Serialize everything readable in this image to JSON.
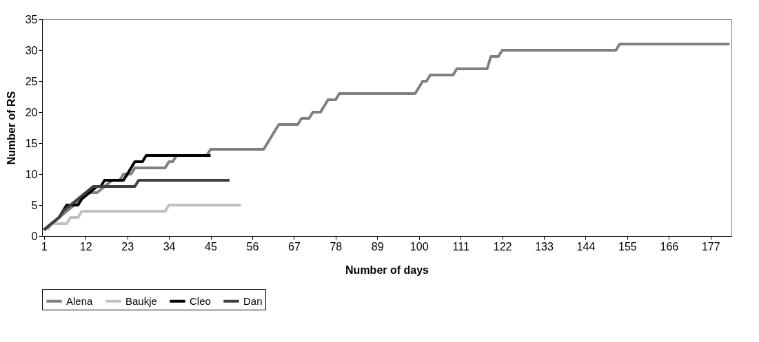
{
  "chart_data": {
    "type": "line",
    "xlabel": "Number of days",
    "ylabel": "Number of RS",
    "xlim": [
      0.5,
      182.5
    ],
    "xticks": [
      1,
      12,
      23,
      34,
      45,
      56,
      67,
      78,
      89,
      100,
      111,
      122,
      133,
      144,
      155,
      166,
      177
    ],
    "ylim": [
      0,
      35
    ],
    "yticks": [
      0,
      5,
      10,
      15,
      20,
      25,
      30,
      35
    ],
    "legend": "bottom",
    "grid": false,
    "marker": "none",
    "line_style": "solid",
    "series": [
      {
        "name": "Alena",
        "color": "#808080",
        "x": [
          1,
          3,
          5,
          7,
          9,
          11,
          13,
          15,
          17,
          19,
          21,
          22,
          24,
          25,
          33,
          34,
          35,
          36,
          44,
          45,
          59,
          60,
          61,
          62,
          63,
          64,
          68,
          69,
          71,
          72,
          74,
          75,
          76,
          78,
          79,
          99,
          100,
          101,
          102,
          103,
          109,
          110,
          118,
          119,
          121,
          122,
          152,
          153,
          182
        ],
        "values": [
          1,
          2,
          3,
          4,
          5,
          6,
          7,
          7,
          8,
          9,
          9,
          10,
          10,
          11,
          11,
          12,
          12,
          13,
          13,
          14,
          14,
          15,
          16,
          17,
          18,
          18,
          18,
          19,
          19,
          20,
          20,
          21,
          22,
          22,
          23,
          23,
          24,
          25,
          25,
          26,
          26,
          27,
          27,
          29,
          29,
          30,
          30,
          31,
          31
        ]
      },
      {
        "name": "Baukje",
        "color": "#c0c0c0",
        "x": [
          2,
          3,
          7,
          8,
          10,
          11,
          33,
          34,
          53
        ],
        "values": [
          1,
          2,
          2,
          3,
          3,
          4,
          4,
          5,
          5
        ]
      },
      {
        "name": "Cleo",
        "color": "#000000",
        "x": [
          1,
          3,
          5,
          6,
          7,
          10,
          11,
          13,
          15,
          16,
          17,
          22,
          23,
          24,
          25,
          27,
          28,
          45
        ],
        "values": [
          1,
          2,
          3,
          4,
          5,
          5,
          6,
          7,
          8,
          8,
          9,
          9,
          10,
          11,
          12,
          12,
          13,
          13
        ]
      },
      {
        "name": "Dan",
        "color": "#404040",
        "x": [
          1,
          3,
          5,
          6,
          8,
          10,
          12,
          14,
          25,
          26,
          50
        ],
        "values": [
          1,
          2,
          3,
          4,
          5,
          6,
          7,
          8,
          8,
          9,
          9
        ]
      }
    ]
  }
}
